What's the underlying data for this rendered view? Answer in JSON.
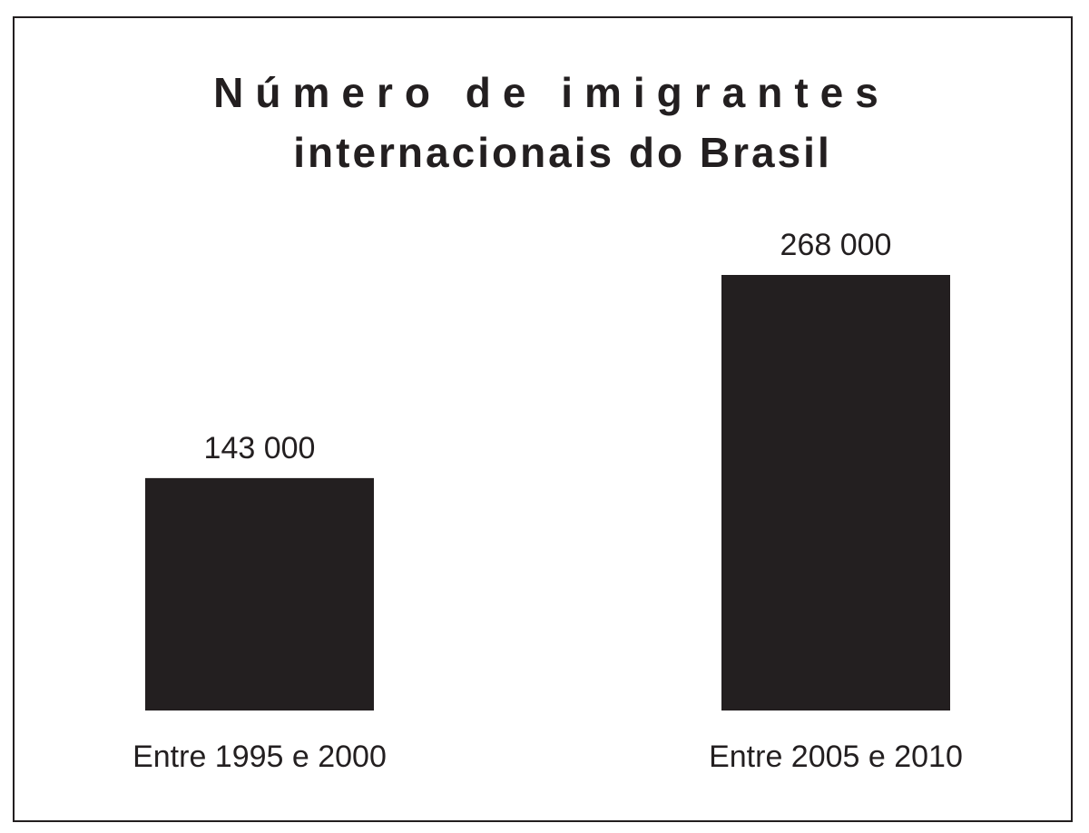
{
  "chart_data": {
    "type": "bar",
    "title_lines": [
      "Número de imigrantes",
      "internacionais do Brasil"
    ],
    "categories": [
      "Entre 1995 e 2000",
      "Entre 2005 e 2010"
    ],
    "values": [
      143000,
      268000
    ],
    "value_labels": [
      "143 000",
      "268 000"
    ],
    "xlabel": "",
    "ylabel": "",
    "ylim": [
      0,
      268000
    ],
    "grid": false,
    "legend": "none",
    "bar_color": "#231f20"
  }
}
